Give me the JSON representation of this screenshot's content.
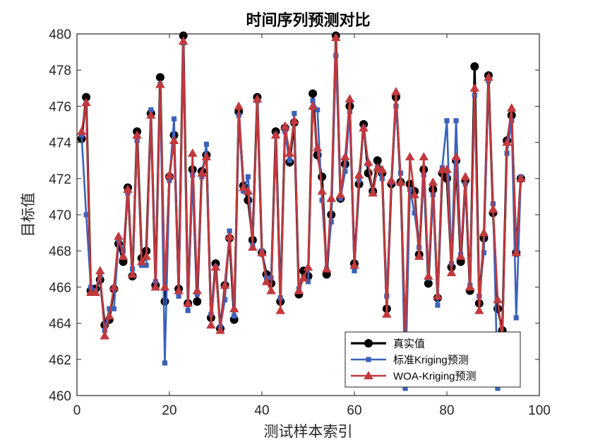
{
  "chart_data": {
    "type": "line",
    "title": "时间序列预测对比",
    "xlabel": "测试样本索引",
    "ylabel": "目标值",
    "xlim": [
      0,
      100
    ],
    "ylim": [
      460,
      480
    ],
    "xticks": [
      0,
      20,
      40,
      60,
      80,
      100
    ],
    "yticks": [
      460,
      462,
      464,
      466,
      468,
      470,
      472,
      474,
      476,
      478,
      480
    ],
    "grid": false,
    "legend_position": "bottom-right",
    "x": [
      1,
      2,
      3,
      4,
      5,
      6,
      7,
      8,
      9,
      10,
      11,
      12,
      13,
      14,
      15,
      16,
      17,
      18,
      19,
      20,
      21,
      22,
      23,
      24,
      25,
      26,
      27,
      28,
      29,
      30,
      31,
      32,
      33,
      34,
      35,
      36,
      37,
      38,
      39,
      40,
      41,
      42,
      43,
      44,
      45,
      46,
      47,
      48,
      49,
      50,
      51,
      52,
      53,
      54,
      55,
      56,
      57,
      58,
      59,
      60,
      61,
      62,
      63,
      64,
      65,
      66,
      67,
      68,
      69,
      70,
      71,
      72,
      73,
      74,
      75,
      76,
      77,
      78,
      79,
      80,
      81,
      82,
      83,
      84,
      85,
      86,
      87,
      88,
      89,
      90,
      91,
      92,
      93,
      94,
      95,
      96
    ],
    "series": [
      {
        "name": "真实值",
        "color": "#000000",
        "marker": "circle",
        "values": [
          474.2,
          476.5,
          465.8,
          465.9,
          466.4,
          463.9,
          464.2,
          465.9,
          468.4,
          467.4,
          471.5,
          466.6,
          474.6,
          467.6,
          468.0,
          475.6,
          466.1,
          477.6,
          465.2,
          472.1,
          474.4,
          465.9,
          479.9,
          465.1,
          472.5,
          465.2,
          472.4,
          473.3,
          464.3,
          467.3,
          463.7,
          466.1,
          468.7,
          464.2,
          475.7,
          471.6,
          470.8,
          468.6,
          476.5,
          467.9,
          466.7,
          466.2,
          474.6,
          465.2,
          474.8,
          472.9,
          475.1,
          465.6,
          466.9,
          466.6,
          476.7,
          473.3,
          472.1,
          466.7,
          470.0,
          479.9,
          470.9,
          472.8,
          476.0,
          467.3,
          471.7,
          475.0,
          472.3,
          471.3,
          473.0,
          472.3,
          464.8,
          471.7,
          476.5,
          471.8,
          463.0,
          471.7,
          471.3,
          467.8,
          472.5,
          466.2,
          471.4,
          465.4,
          472.3,
          472.0,
          467.1,
          473.0,
          467.4,
          471.9,
          465.8,
          478.2,
          465.1,
          468.7,
          477.7,
          470.1,
          464.8,
          463.6,
          474.1,
          475.5,
          467.9,
          472.0
        ]
      },
      {
        "name": "标准Kriging预测",
        "color": "#3A62B8",
        "marker": "square",
        "values": [
          474.4,
          470.0,
          466.0,
          465.8,
          466.6,
          463.6,
          464.8,
          464.8,
          468.6,
          468.0,
          471.2,
          467.0,
          474.1,
          467.2,
          467.2,
          475.8,
          466.3,
          477.2,
          461.8,
          471.9,
          475.3,
          465.5,
          479.5,
          464.7,
          472.2,
          465.6,
          472.1,
          473.9,
          464.5,
          467.1,
          463.8,
          465.3,
          469.1,
          464.4,
          475.5,
          471.3,
          472.1,
          468.3,
          476.3,
          468.0,
          466.5,
          466.5,
          474.4,
          465.4,
          474.6,
          473.0,
          475.6,
          465.9,
          466.5,
          466.3,
          476.3,
          475.8,
          470.8,
          467.0,
          469.6,
          478.8,
          470.9,
          472.4,
          475.7,
          466.9,
          471.9,
          474.8,
          472.8,
          471.2,
          472.6,
          472.0,
          465.5,
          471.8,
          476.0,
          472.3,
          460.4,
          471.4,
          470.1,
          468.2,
          472.2,
          466.5,
          471.1,
          465.0,
          472.6,
          475.2,
          467.3,
          475.2,
          467.8,
          471.7,
          466.1,
          476.6,
          465.5,
          467.9,
          477.4,
          470.6,
          460.4,
          463.3,
          473.4,
          475.2,
          464.3,
          472.1
        ]
      },
      {
        "name": "WOA-Kriging预测",
        "color": "#C1393E",
        "marker": "triangle",
        "values": [
          474.6,
          476.2,
          465.7,
          465.7,
          466.9,
          463.3,
          464.4,
          466.0,
          468.8,
          467.7,
          471.4,
          466.7,
          474.4,
          467.4,
          467.7,
          475.5,
          466.0,
          477.2,
          466.0,
          472.2,
          474.1,
          465.8,
          479.6,
          465.1,
          473.4,
          465.8,
          472.3,
          473.2,
          463.9,
          467.1,
          463.6,
          466.1,
          468.8,
          464.8,
          476.0,
          471.5,
          471.3,
          468.2,
          476.4,
          467.9,
          466.3,
          465.8,
          474.4,
          464.7,
          474.9,
          473.4,
          475.2,
          465.8,
          466.5,
          467.1,
          476.0,
          473.7,
          471.3,
          467.0,
          470.9,
          479.8,
          471.1,
          473.2,
          476.4,
          467.2,
          472.2,
          474.8,
          472.9,
          471.2,
          472.6,
          472.5,
          464.5,
          471.9,
          476.8,
          471.8,
          463.3,
          473.2,
          471.1,
          467.7,
          473.2,
          466.6,
          471.8,
          465.5,
          472.5,
          472.5,
          466.8,
          473.2,
          467.7,
          472.1,
          466.0,
          477.0,
          464.7,
          469.0,
          477.6,
          470.3,
          465.3,
          463.0,
          474.0,
          475.9,
          467.9,
          472.0
        ]
      }
    ]
  }
}
